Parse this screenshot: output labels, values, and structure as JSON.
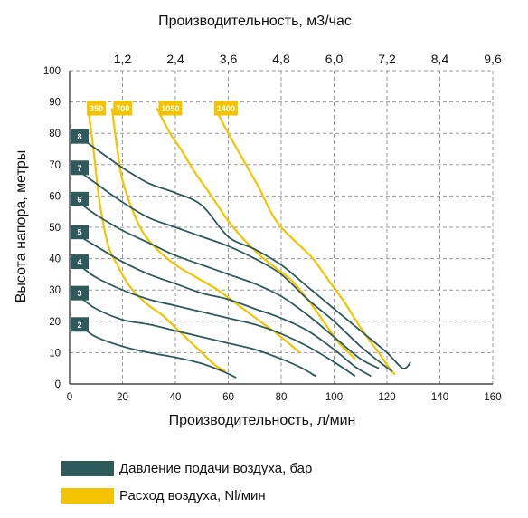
{
  "colors": {
    "pressure": "#2f5a5c",
    "air": "#f4c400",
    "grid": "#9a9a9a",
    "axis": "#222222"
  },
  "chart_data": {
    "type": "line",
    "title": "",
    "xlabel": "Производительность, л/мин",
    "ylabel": "Высота напора, метры",
    "x2label": "Производительность, м3/час",
    "xlim": [
      0,
      160
    ],
    "ylim": [
      0,
      100
    ],
    "xticks": [
      "0",
      "20",
      "40",
      "60",
      "80",
      "100",
      "120",
      "140",
      "160"
    ],
    "yticks": [
      "0",
      "10",
      "20",
      "30",
      "40",
      "50",
      "60",
      "70",
      "80",
      "90",
      "100"
    ],
    "x2ticks": [
      "1,2",
      "2,4",
      "3,6",
      "4,8",
      "6,0",
      "7,2",
      "8,4",
      "9,6"
    ],
    "x2_positions_lpm": [
      20,
      40,
      60,
      80,
      100,
      120,
      140,
      160
    ],
    "grid": true,
    "legend": "bottom",
    "legend_entries": [
      {
        "label": "Давление подачи воздуха, бар",
        "color_key": "pressure"
      },
      {
        "label": "Расход воздуха, Nl/мин",
        "color_key": "air"
      }
    ],
    "pressure_series": [
      {
        "name": "2",
        "label_y": 19,
        "points": [
          [
            5,
            18
          ],
          [
            10,
            15
          ],
          [
            20,
            12
          ],
          [
            30,
            10
          ],
          [
            40,
            8.5
          ],
          [
            50,
            6.5
          ],
          [
            58,
            4
          ],
          [
            63,
            2
          ]
        ]
      },
      {
        "name": "3",
        "label_y": 29,
        "points": [
          [
            5,
            27
          ],
          [
            10,
            24
          ],
          [
            20,
            20.5
          ],
          [
            30,
            19
          ],
          [
            40,
            17
          ],
          [
            50,
            15
          ],
          [
            60,
            13
          ],
          [
            70,
            11
          ],
          [
            80,
            8
          ],
          [
            88,
            5
          ],
          [
            93,
            2.5
          ]
        ]
      },
      {
        "name": "4",
        "label_y": 39,
        "points": [
          [
            5,
            37
          ],
          [
            10,
            34
          ],
          [
            20,
            30
          ],
          [
            30,
            27
          ],
          [
            40,
            25
          ],
          [
            50,
            23
          ],
          [
            60,
            21
          ],
          [
            70,
            19
          ],
          [
            80,
            16
          ],
          [
            90,
            12
          ],
          [
            100,
            7
          ],
          [
            108,
            2.5
          ]
        ]
      },
      {
        "name": "5",
        "label_y": 48.5,
        "points": [
          [
            5,
            46.5
          ],
          [
            10,
            44
          ],
          [
            20,
            39
          ],
          [
            30,
            35
          ],
          [
            40,
            32
          ],
          [
            50,
            29
          ],
          [
            60,
            27
          ],
          [
            70,
            24
          ],
          [
            80,
            21
          ],
          [
            90,
            17
          ],
          [
            100,
            11
          ],
          [
            108,
            5.5
          ],
          [
            114,
            2.5
          ]
        ]
      },
      {
        "name": "6",
        "label_y": 59,
        "points": [
          [
            5,
            57
          ],
          [
            10,
            54
          ],
          [
            20,
            49
          ],
          [
            30,
            45
          ],
          [
            40,
            41
          ],
          [
            50,
            38
          ],
          [
            60,
            35
          ],
          [
            70,
            32
          ],
          [
            80,
            28
          ],
          [
            90,
            22
          ],
          [
            100,
            15
          ],
          [
            110,
            8
          ],
          [
            117,
            5
          ]
        ]
      },
      {
        "name": "7",
        "label_y": 69,
        "points": [
          [
            5,
            67
          ],
          [
            10,
            64
          ],
          [
            20,
            58
          ],
          [
            30,
            53
          ],
          [
            40,
            50
          ],
          [
            50,
            47
          ],
          [
            60,
            44
          ],
          [
            70,
            40
          ],
          [
            80,
            35
          ],
          [
            90,
            27
          ],
          [
            100,
            20
          ],
          [
            110,
            12
          ],
          [
            118,
            6.5
          ],
          [
            122,
            4
          ]
        ]
      },
      {
        "name": "8",
        "label_y": 79,
        "points": [
          [
            5,
            78
          ],
          [
            10,
            75
          ],
          [
            20,
            69
          ],
          [
            30,
            64
          ],
          [
            40,
            61
          ],
          [
            50,
            57
          ],
          [
            60,
            47
          ],
          [
            70,
            43
          ],
          [
            80,
            38
          ],
          [
            90,
            31
          ],
          [
            100,
            24
          ],
          [
            110,
            17
          ],
          [
            120,
            10
          ],
          [
            126,
            5
          ],
          [
            129,
            7
          ]
        ]
      }
    ],
    "air_series": [
      {
        "name": "350",
        "label_x": 6,
        "points": [
          [
            7,
            88
          ],
          [
            9,
            75
          ],
          [
            11,
            60
          ],
          [
            13,
            50
          ],
          [
            15,
            43
          ],
          [
            18,
            38
          ],
          [
            22,
            32
          ],
          [
            26,
            28
          ],
          [
            30,
            25
          ],
          [
            35,
            22
          ],
          [
            40,
            18
          ],
          [
            45,
            14
          ],
          [
            50,
            10
          ],
          [
            55,
            6
          ],
          [
            59,
            4
          ]
        ]
      },
      {
        "name": "700",
        "label_x": 16,
        "points": [
          [
            16,
            88
          ],
          [
            18,
            75
          ],
          [
            20,
            65
          ],
          [
            24,
            55
          ],
          [
            28,
            48
          ],
          [
            33,
            43
          ],
          [
            40,
            38
          ],
          [
            48,
            34
          ],
          [
            56,
            30
          ],
          [
            64,
            25
          ],
          [
            72,
            20
          ],
          [
            80,
            15
          ],
          [
            87,
            10
          ]
        ]
      },
      {
        "name": "1050",
        "label_x": 34,
        "points": [
          [
            33,
            88
          ],
          [
            38,
            80
          ],
          [
            42,
            75
          ],
          [
            47,
            68
          ],
          [
            52,
            62
          ],
          [
            56,
            57
          ],
          [
            60,
            52
          ],
          [
            66,
            46
          ],
          [
            72,
            41
          ],
          [
            78,
            37
          ],
          [
            84,
            33
          ],
          [
            90,
            27
          ],
          [
            96,
            20
          ],
          [
            102,
            13
          ],
          [
            108,
            8
          ]
        ]
      },
      {
        "name": "1400",
        "label_x": 55,
        "points": [
          [
            55,
            88
          ],
          [
            60,
            80
          ],
          [
            64,
            74
          ],
          [
            68,
            68
          ],
          [
            72,
            62
          ],
          [
            76,
            55
          ],
          [
            80,
            50
          ],
          [
            86,
            45
          ],
          [
            92,
            40
          ],
          [
            98,
            33
          ],
          [
            104,
            26
          ],
          [
            110,
            18
          ],
          [
            116,
            11
          ],
          [
            121,
            5
          ],
          [
            123,
            3
          ]
        ]
      }
    ]
  }
}
